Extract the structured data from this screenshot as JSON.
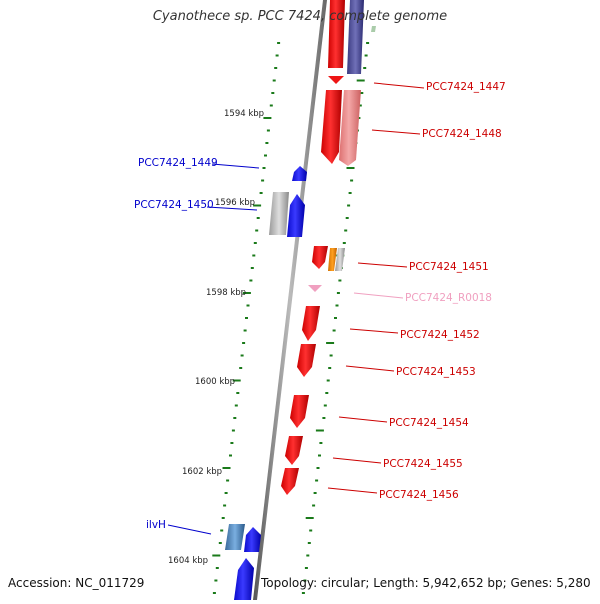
{
  "title": "Cyanothece sp. PCC 7424, complete genome",
  "footer": {
    "accession": "Accession: NC_011729",
    "topology": "Topology: circular; Length: 5,942,652 bp; Genes: 5,280"
  },
  "colors": {
    "forward_gene": "#1515ee",
    "reverse_gene": "#ee1515",
    "reverse_gene_light": "#ee8a8a",
    "rna": "#f0a0c0",
    "backbone": "#888888",
    "tick": "#1a7a1a",
    "label_blue": "#0000cc",
    "label_red": "#cc0000"
  },
  "scale_labels": [
    "1594 kbp",
    "1596 kbp",
    "1598 kbp",
    "1600 kbp",
    "1602 kbp",
    "1604 kbp"
  ],
  "gene_labels": {
    "left": [
      "PCC7424_1449",
      "PCC7424_1450",
      "ilvH"
    ],
    "right": [
      "PCC7424_1447",
      "PCC7424_1448",
      "PCC7424_1451",
      "PCC7424_R0018",
      "PCC7424_1452",
      "PCC7424_1453",
      "PCC7424_1454",
      "PCC7424_1455",
      "PCC7424_1456"
    ]
  }
}
